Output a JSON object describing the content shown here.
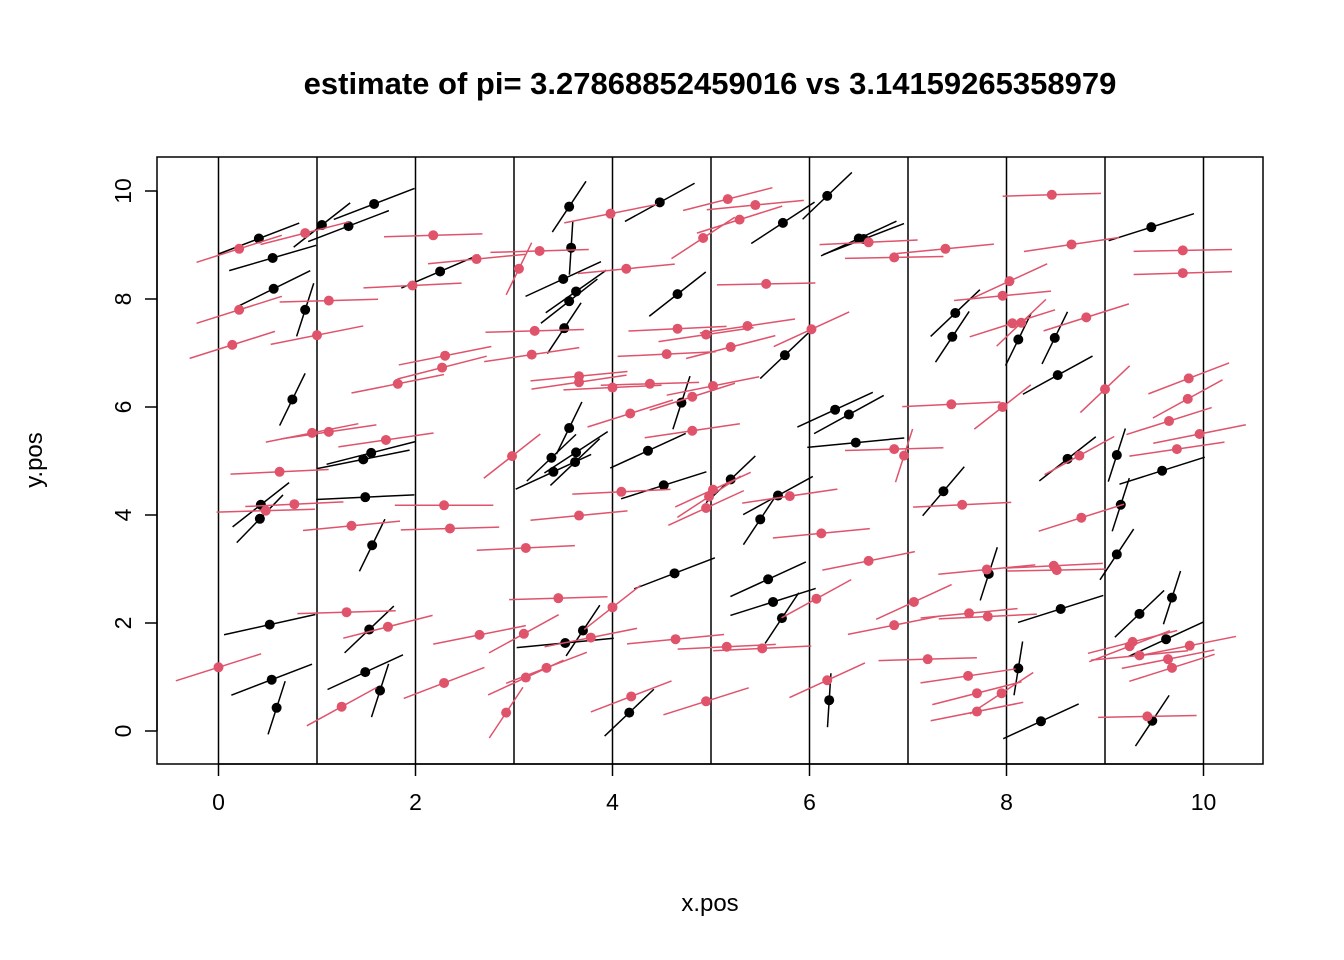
{
  "chart_data": {
    "type": "scatter",
    "title": "estimate of pi= 3.27868852459016 vs 3.14159265358979",
    "xlabel": "x.pos",
    "ylabel": "y.pos",
    "xlim": [
      -0.6,
      10.6
    ],
    "ylim": [
      -0.6,
      10.6
    ],
    "x_ticks": [
      "0",
      "2",
      "4",
      "6",
      "8",
      "10"
    ],
    "y_ticks": [
      "0",
      "2",
      "4",
      "6",
      "8",
      "10"
    ],
    "grid": false,
    "vertical_lines": [
      0,
      1,
      2,
      3,
      4,
      5,
      6,
      7,
      8,
      9,
      10
    ],
    "needle_length": 1,
    "colors": {
      "non_crossing": "#000000",
      "crossing": "#DF536B",
      "frame": "#000000"
    },
    "series": [
      {
        "color": "#000000",
        "points": [
          {
            "x": 0.41,
            "y": 9.12,
            "a": 35
          },
          {
            "x": 0.55,
            "y": 8.76,
            "a": 28
          },
          {
            "x": 0.56,
            "y": 8.19,
            "a": 42
          },
          {
            "x": 0.88,
            "y": 7.8,
            "a": 80
          },
          {
            "x": 0.75,
            "y": 6.14,
            "a": 75
          },
          {
            "x": 0.43,
            "y": 4.19,
            "a": 55
          },
          {
            "x": 0.42,
            "y": 3.93,
            "a": 62
          },
          {
            "x": 0.52,
            "y": 1.97,
            "a": 22
          },
          {
            "x": 0.54,
            "y": 0.95,
            "a": 35
          },
          {
            "x": 0.59,
            "y": 0.43,
            "a": 80
          },
          {
            "x": 1.05,
            "y": 9.37,
            "a": 55
          },
          {
            "x": 1.32,
            "y": 9.35,
            "a": 35
          },
          {
            "x": 1.58,
            "y": 9.76,
            "a": 35
          },
          {
            "x": 1.47,
            "y": 5.03,
            "a": 20
          },
          {
            "x": 1.55,
            "y": 5.15,
            "a": 25
          },
          {
            "x": 1.49,
            "y": 4.33,
            "a": 5
          },
          {
            "x": 1.56,
            "y": 3.44,
            "a": 75
          },
          {
            "x": 1.53,
            "y": 1.88,
            "a": 60
          },
          {
            "x": 1.49,
            "y": 1.09,
            "a": 40
          },
          {
            "x": 1.64,
            "y": 0.75,
            "a": 80
          },
          {
            "x": 2.25,
            "y": 8.51,
            "a": 38
          },
          {
            "x": 3.56,
            "y": 9.71,
            "a": 70
          },
          {
            "x": 3.58,
            "y": 8.95,
            "a": 88
          },
          {
            "x": 3.5,
            "y": 8.37,
            "a": 40
          },
          {
            "x": 3.56,
            "y": 7.96,
            "a": 55
          },
          {
            "x": 3.63,
            "y": 8.14,
            "a": 52
          },
          {
            "x": 3.51,
            "y": 7.46,
            "a": 70
          },
          {
            "x": 3.56,
            "y": 5.61,
            "a": 75
          },
          {
            "x": 3.38,
            "y": 5.06,
            "a": 60
          },
          {
            "x": 3.63,
            "y": 5.16,
            "a": 50
          },
          {
            "x": 3.62,
            "y": 4.98,
            "a": 60
          },
          {
            "x": 3.4,
            "y": 4.8,
            "a": 40
          },
          {
            "x": 3.52,
            "y": 1.63,
            "a": 10
          },
          {
            "x": 3.7,
            "y": 1.86,
            "a": 70
          },
          {
            "x": 4.48,
            "y": 9.79,
            "a": 45
          },
          {
            "x": 4.66,
            "y": 8.09,
            "a": 55
          },
          {
            "x": 4.36,
            "y": 5.19,
            "a": 40
          },
          {
            "x": 4.7,
            "y": 6.08,
            "a": 80
          },
          {
            "x": 4.52,
            "y": 4.55,
            "a": 30
          },
          {
            "x": 4.63,
            "y": 2.92,
            "a": 35
          },
          {
            "x": 4.17,
            "y": 0.34,
            "a": 60
          },
          {
            "x": 5.73,
            "y": 9.41,
            "a": 50
          },
          {
            "x": 5.75,
            "y": 6.96,
            "a": 60
          },
          {
            "x": 5.2,
            "y": 4.66,
            "a": 60
          },
          {
            "x": 5.5,
            "y": 3.92,
            "a": 70
          },
          {
            "x": 5.68,
            "y": 4.36,
            "a": 45
          },
          {
            "x": 5.58,
            "y": 2.81,
            "a": 40
          },
          {
            "x": 5.63,
            "y": 2.39,
            "a": 30
          },
          {
            "x": 5.72,
            "y": 2.09,
            "a": 70
          },
          {
            "x": 6.18,
            "y": 9.91,
            "a": 60
          },
          {
            "x": 6.5,
            "y": 9.12,
            "a": 40
          },
          {
            "x": 6.55,
            "y": 9.11,
            "a": 35
          },
          {
            "x": 6.26,
            "y": 5.95,
            "a": 40
          },
          {
            "x": 6.4,
            "y": 5.86,
            "a": 45
          },
          {
            "x": 6.47,
            "y": 5.34,
            "a": 10
          },
          {
            "x": 6.2,
            "y": 0.57,
            "a": 88
          },
          {
            "x": 7.48,
            "y": 7.74,
            "a": 60
          },
          {
            "x": 7.45,
            "y": 7.3,
            "a": 70
          },
          {
            "x": 7.36,
            "y": 4.44,
            "a": 65
          },
          {
            "x": 7.82,
            "y": 2.91,
            "a": 80
          },
          {
            "x": 8.12,
            "y": 7.25,
            "a": 75
          },
          {
            "x": 8.49,
            "y": 7.28,
            "a": 75
          },
          {
            "x": 8.52,
            "y": 6.59,
            "a": 45
          },
          {
            "x": 8.62,
            "y": 5.04,
            "a": 55
          },
          {
            "x": 8.55,
            "y": 2.26,
            "a": 30
          },
          {
            "x": 8.12,
            "y": 1.16,
            "a": 85
          },
          {
            "x": 8.35,
            "y": 0.18,
            "a": 40
          },
          {
            "x": 9.47,
            "y": 9.33,
            "a": 30
          },
          {
            "x": 9.12,
            "y": 5.11,
            "a": 80
          },
          {
            "x": 9.16,
            "y": 4.19,
            "a": 80
          },
          {
            "x": 9.12,
            "y": 3.27,
            "a": 70
          },
          {
            "x": 9.58,
            "y": 4.82,
            "a": 30
          },
          {
            "x": 9.35,
            "y": 2.17,
            "a": 60
          },
          {
            "x": 9.68,
            "y": 2.47,
            "a": 80
          },
          {
            "x": 9.62,
            "y": 1.7,
            "a": 40
          },
          {
            "x": 9.48,
            "y": 0.19,
            "a": 70
          }
        ]
      },
      {
        "color": "#DF536B",
        "points": [
          {
            "x": 0.21,
            "y": 8.93,
            "a": 30
          },
          {
            "x": 0.88,
            "y": 9.22,
            "a": 25
          },
          {
            "x": 0.21,
            "y": 7.8,
            "a": 30
          },
          {
            "x": 0.14,
            "y": 7.15,
            "a": 30
          },
          {
            "x": 1.0,
            "y": 7.33,
            "a": 20
          },
          {
            "x": 1.12,
            "y": 7.97,
            "a": 3
          },
          {
            "x": 0.95,
            "y": 5.52,
            "a": 20
          },
          {
            "x": 1.12,
            "y": 5.54,
            "a": 15
          },
          {
            "x": 1.7,
            "y": 5.39,
            "a": 15
          },
          {
            "x": 0.62,
            "y": 4.8,
            "a": 5
          },
          {
            "x": 0.77,
            "y": 4.2,
            "a": 5
          },
          {
            "x": 0.48,
            "y": 4.08,
            "a": 3
          },
          {
            "x": 1.35,
            "y": 3.8,
            "a": 10
          },
          {
            "x": 1.3,
            "y": 2.2,
            "a": 3
          },
          {
            "x": 1.72,
            "y": 1.93,
            "a": 25
          },
          {
            "x": 1.25,
            "y": 0.45,
            "a": 45
          },
          {
            "x": 0.0,
            "y": 1.18,
            "a": 30
          },
          {
            "x": 2.18,
            "y": 9.18,
            "a": 3
          },
          {
            "x": 1.97,
            "y": 8.25,
            "a": 5
          },
          {
            "x": 2.3,
            "y": 6.95,
            "a": 20
          },
          {
            "x": 2.27,
            "y": 6.73,
            "a": 25
          },
          {
            "x": 1.82,
            "y": 6.43,
            "a": 20
          },
          {
            "x": 2.29,
            "y": 4.18,
            "a": 0
          },
          {
            "x": 2.35,
            "y": 3.75,
            "a": 3
          },
          {
            "x": 2.65,
            "y": 1.78,
            "a": 20
          },
          {
            "x": 2.29,
            "y": 0.89,
            "a": 35
          },
          {
            "x": 2.62,
            "y": 8.74,
            "a": 10
          },
          {
            "x": 2.98,
            "y": 5.09,
            "a": 55
          },
          {
            "x": 2.92,
            "y": 0.34,
            "a": 70
          },
          {
            "x": 3.05,
            "y": 8.56,
            "a": 75
          },
          {
            "x": 3.26,
            "y": 8.89,
            "a": 3
          },
          {
            "x": 3.21,
            "y": 7.41,
            "a": 3
          },
          {
            "x": 3.18,
            "y": 6.97,
            "a": 15
          },
          {
            "x": 3.66,
            "y": 6.57,
            "a": 10
          },
          {
            "x": 3.66,
            "y": 6.46,
            "a": 15
          },
          {
            "x": 3.66,
            "y": 3.99,
            "a": 10
          },
          {
            "x": 3.12,
            "y": 3.39,
            "a": 5
          },
          {
            "x": 3.45,
            "y": 2.46,
            "a": 3
          },
          {
            "x": 3.1,
            "y": 1.8,
            "a": 45
          },
          {
            "x": 3.33,
            "y": 1.17,
            "a": 35
          },
          {
            "x": 3.78,
            "y": 1.73,
            "a": 20
          },
          {
            "x": 3.12,
            "y": 0.99,
            "a": 40
          },
          {
            "x": 3.98,
            "y": 9.58,
            "a": 20
          },
          {
            "x": 4.14,
            "y": 8.56,
            "a": 10
          },
          {
            "x": 4.66,
            "y": 7.45,
            "a": 5
          },
          {
            "x": 4.55,
            "y": 6.98,
            "a": 5
          },
          {
            "x": 4.38,
            "y": 6.43,
            "a": 3
          },
          {
            "x": 4.0,
            "y": 6.36,
            "a": 5
          },
          {
            "x": 4.18,
            "y": 5.88,
            "a": 30
          },
          {
            "x": 4.81,
            "y": 6.19,
            "a": 30
          },
          {
            "x": 4.81,
            "y": 5.56,
            "a": 15
          },
          {
            "x": 4.09,
            "y": 4.43,
            "a": 5
          },
          {
            "x": 4.0,
            "y": 2.29,
            "a": 55
          },
          {
            "x": 4.19,
            "y": 0.64,
            "a": 35
          },
          {
            "x": 4.64,
            "y": 1.7,
            "a": 10
          },
          {
            "x": 4.92,
            "y": 9.13,
            "a": 50
          },
          {
            "x": 5.17,
            "y": 9.85,
            "a": 25
          },
          {
            "x": 5.29,
            "y": 9.47,
            "a": 30
          },
          {
            "x": 5.45,
            "y": 9.74,
            "a": 10
          },
          {
            "x": 5.56,
            "y": 8.28,
            "a": 2
          },
          {
            "x": 5.37,
            "y": 7.5,
            "a": 15
          },
          {
            "x": 4.95,
            "y": 7.34,
            "a": 15
          },
          {
            "x": 5.2,
            "y": 7.11,
            "a": 25
          },
          {
            "x": 5.02,
            "y": 6.39,
            "a": 20
          },
          {
            "x": 4.98,
            "y": 4.34,
            "a": 50
          },
          {
            "x": 5.02,
            "y": 4.47,
            "a": 40
          },
          {
            "x": 4.95,
            "y": 4.13,
            "a": 40
          },
          {
            "x": 5.8,
            "y": 4.35,
            "a": 15
          },
          {
            "x": 5.16,
            "y": 1.56,
            "a": 5
          },
          {
            "x": 5.52,
            "y": 1.53,
            "a": 5
          },
          {
            "x": 4.95,
            "y": 0.55,
            "a": 30
          },
          {
            "x": 6.02,
            "y": 7.44,
            "a": 40
          },
          {
            "x": 6.12,
            "y": 3.66,
            "a": 10
          },
          {
            "x": 6.6,
            "y": 3.15,
            "a": 20
          },
          {
            "x": 6.07,
            "y": 2.45,
            "a": 45
          },
          {
            "x": 6.18,
            "y": 0.94,
            "a": 40
          },
          {
            "x": 6.6,
            "y": 9.05,
            "a": 5
          },
          {
            "x": 6.86,
            "y": 8.77,
            "a": 2
          },
          {
            "x": 6.86,
            "y": 5.22,
            "a": 3
          },
          {
            "x": 6.96,
            "y": 5.1,
            "a": 80
          },
          {
            "x": 6.86,
            "y": 1.96,
            "a": 20
          },
          {
            "x": 7.38,
            "y": 8.93,
            "a": 10
          },
          {
            "x": 7.44,
            "y": 6.05,
            "a": 5
          },
          {
            "x": 7.55,
            "y": 4.19,
            "a": 5
          },
          {
            "x": 7.06,
            "y": 2.39,
            "a": 40
          },
          {
            "x": 7.62,
            "y": 2.18,
            "a": 10
          },
          {
            "x": 7.81,
            "y": 2.12,
            "a": 5
          },
          {
            "x": 7.2,
            "y": 1.33,
            "a": 3
          },
          {
            "x": 7.61,
            "y": 1.02,
            "a": 15
          },
          {
            "x": 7.7,
            "y": 0.7,
            "a": 25
          },
          {
            "x": 7.7,
            "y": 0.36,
            "a": 20
          },
          {
            "x": 7.8,
            "y": 2.99,
            "a": 10
          },
          {
            "x": 7.96,
            "y": 6.0,
            "a": 55
          },
          {
            "x": 7.96,
            "y": 8.06,
            "a": 10
          },
          {
            "x": 8.03,
            "y": 8.33,
            "a": 40
          },
          {
            "x": 8.15,
            "y": 7.56,
            "a": 60
          },
          {
            "x": 8.06,
            "y": 7.55,
            "a": 30
          },
          {
            "x": 7.95,
            "y": 0.7,
            "a": 50
          },
          {
            "x": 8.46,
            "y": 9.93,
            "a": 3
          },
          {
            "x": 8.66,
            "y": 9.01,
            "a": 15
          },
          {
            "x": 8.81,
            "y": 7.66,
            "a": 30
          },
          {
            "x": 8.74,
            "y": 5.1,
            "a": 45
          },
          {
            "x": 8.76,
            "y": 3.95,
            "a": 30
          },
          {
            "x": 8.48,
            "y": 3.06,
            "a": 5
          },
          {
            "x": 8.51,
            "y": 2.98,
            "a": 2
          },
          {
            "x": 9.0,
            "y": 6.33,
            "a": 60
          },
          {
            "x": 9.79,
            "y": 8.9,
            "a": 2
          },
          {
            "x": 9.79,
            "y": 8.48,
            "a": 3
          },
          {
            "x": 9.85,
            "y": 6.53,
            "a": 35
          },
          {
            "x": 9.84,
            "y": 6.15,
            "a": 45
          },
          {
            "x": 9.65,
            "y": 5.74,
            "a": 30
          },
          {
            "x": 9.96,
            "y": 5.5,
            "a": 20
          },
          {
            "x": 9.73,
            "y": 5.22,
            "a": 15
          },
          {
            "x": 9.28,
            "y": 1.65,
            "a": 25
          },
          {
            "x": 9.25,
            "y": 1.57,
            "a": 35
          },
          {
            "x": 9.35,
            "y": 1.4,
            "a": 10
          },
          {
            "x": 9.68,
            "y": 1.17,
            "a": 30
          },
          {
            "x": 9.64,
            "y": 1.33,
            "a": 20
          },
          {
            "x": 9.86,
            "y": 1.58,
            "a": 20
          },
          {
            "x": 9.43,
            "y": 0.27,
            "a": 2
          }
        ]
      }
    ]
  }
}
